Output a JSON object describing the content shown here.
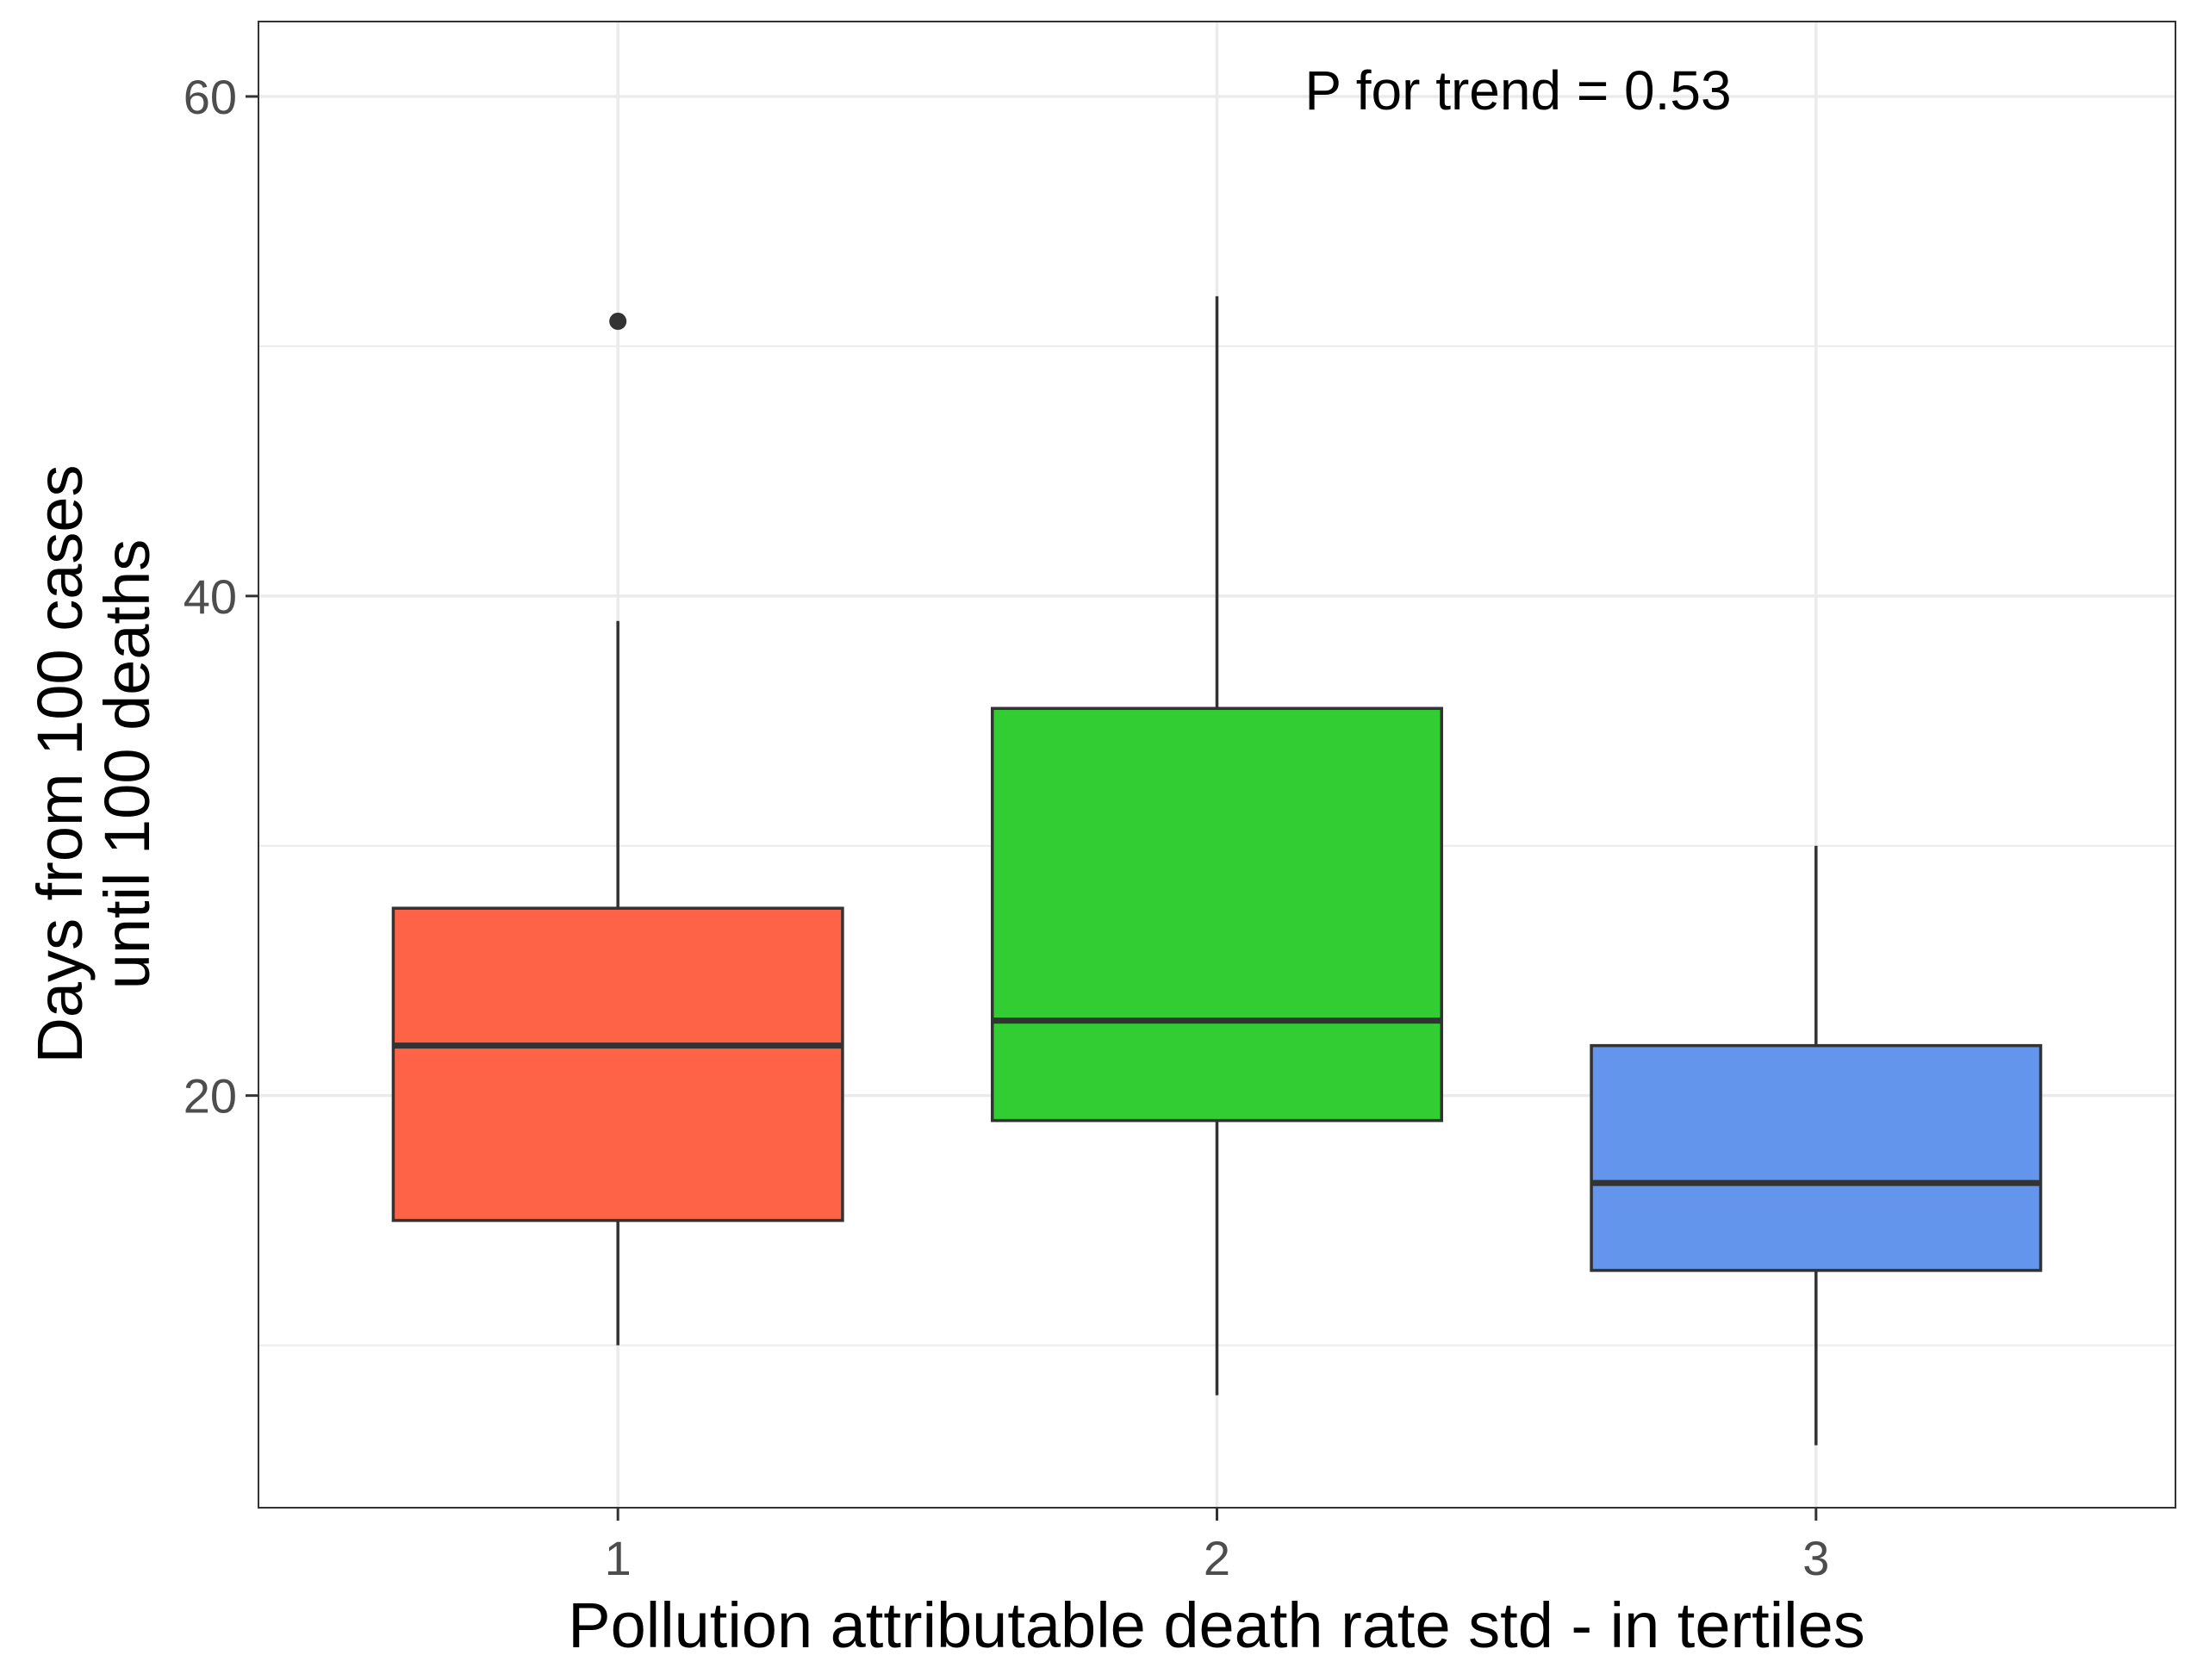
{
  "chart_data": {
    "type": "boxplot",
    "title": "",
    "xlabel": "Pollution attributable death rate std - in tertiles",
    "ylabel_lines": [
      "Days from 100 cases",
      "until 100 deaths"
    ],
    "ylim": [
      3.5,
      63
    ],
    "y_major_ticks": [
      20,
      40,
      60
    ],
    "y_minor_gridlines": [
      10,
      30,
      50
    ],
    "categories": [
      "1",
      "2",
      "3"
    ],
    "annotation": "P for trend = 0.53",
    "grid": true,
    "legend": "none",
    "series": [
      {
        "category": "1",
        "color": "#FF6347",
        "whisker_low": 10,
        "q1": 15,
        "median": 22,
        "q3": 27.5,
        "whisker_high": 39,
        "outliers": [
          51
        ]
      },
      {
        "category": "2",
        "color": "#32CD32",
        "whisker_low": 8,
        "q1": 19,
        "median": 23,
        "q3": 35.5,
        "whisker_high": 52,
        "outliers": []
      },
      {
        "category": "3",
        "color": "#6495ED",
        "whisker_low": 6,
        "q1": 13,
        "median": 16.5,
        "q3": 22,
        "whisker_high": 30,
        "outliers": []
      }
    ]
  }
}
